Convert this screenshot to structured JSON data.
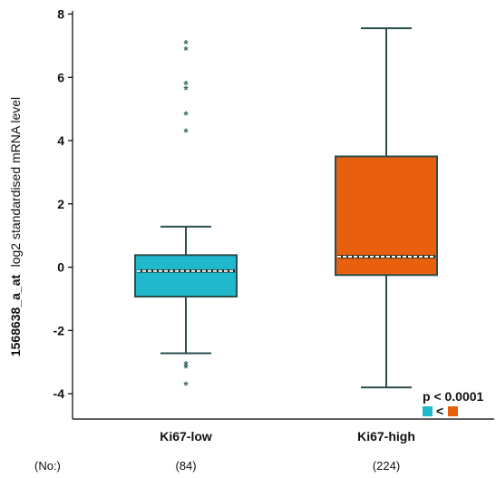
{
  "chart_data": {
    "type": "box",
    "ylabel_bold": "1568638_a_at",
    "ylabel_rest": "log2 standardised mRNA level",
    "ylim": [
      -4.8,
      8.1
    ],
    "yticks": [
      -4,
      -2,
      0,
      2,
      4,
      6,
      8
    ],
    "count_prefix": "(No:)",
    "categories": [
      "Ki67-low",
      "Ki67-high"
    ],
    "groups": [
      {
        "name": "Ki67-low",
        "count_label": "(84)",
        "color": "#1fb8cc",
        "min": -2.72,
        "q1": -0.93,
        "median": -0.12,
        "q3": 0.38,
        "max": 1.28,
        "outliers": [
          7.1,
          6.9,
          5.8,
          5.65,
          4.85,
          4.3,
          -3.05,
          -3.15,
          -3.7
        ]
      },
      {
        "name": "Ki67-high",
        "count_label": "(224)",
        "color": "#e8600e",
        "min": -3.8,
        "q1": -0.25,
        "median": 0.33,
        "q3": 3.5,
        "max": 7.55,
        "outliers": []
      }
    ],
    "legend": {
      "pvalue": "p < 0.0001",
      "comparison_symbol": "<",
      "placement": "bottom-right"
    }
  }
}
